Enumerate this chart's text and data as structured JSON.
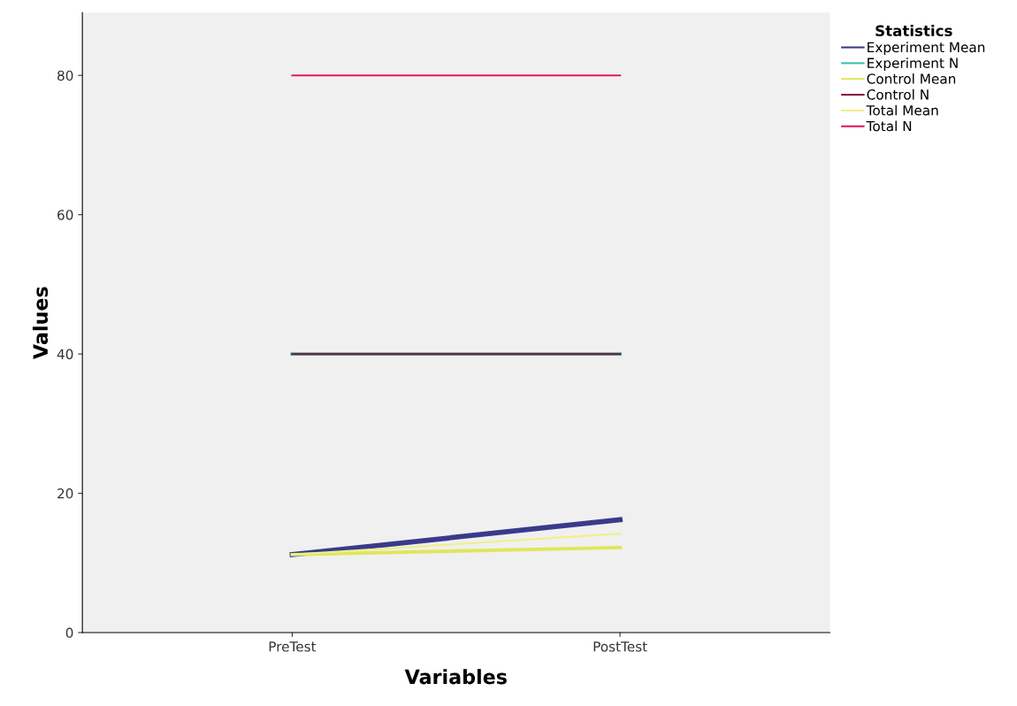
{
  "chart_data": {
    "type": "line",
    "xlabel": "Variables",
    "ylabel": "Values",
    "legend_title": "Statistics",
    "categories": [
      "PreTest",
      "PostTest"
    ],
    "series": [
      {
        "name": "Experiment Mean",
        "color": "#3a3a8c",
        "values": [
          11.2,
          16.2
        ]
      },
      {
        "name": "Experiment N",
        "color": "#3cbfae",
        "values": [
          40,
          40
        ]
      },
      {
        "name": "Control Mean",
        "color": "#dfe65a",
        "values": [
          11.2,
          12.2
        ]
      },
      {
        "name": "Control N",
        "color": "#8b1a3a",
        "values": [
          40,
          40
        ]
      },
      {
        "name": "Total Mean",
        "color": "#eef08a",
        "values": [
          11.2,
          14.2
        ]
      },
      {
        "name": "Total N",
        "color": "#e6195a",
        "values": [
          80,
          80
        ]
      }
    ],
    "ylim": [
      0,
      89
    ],
    "yticks": [
      0,
      20,
      40,
      60,
      80
    ],
    "grid": false,
    "legend": "top right",
    "marker": "none",
    "line_style": "solid"
  }
}
